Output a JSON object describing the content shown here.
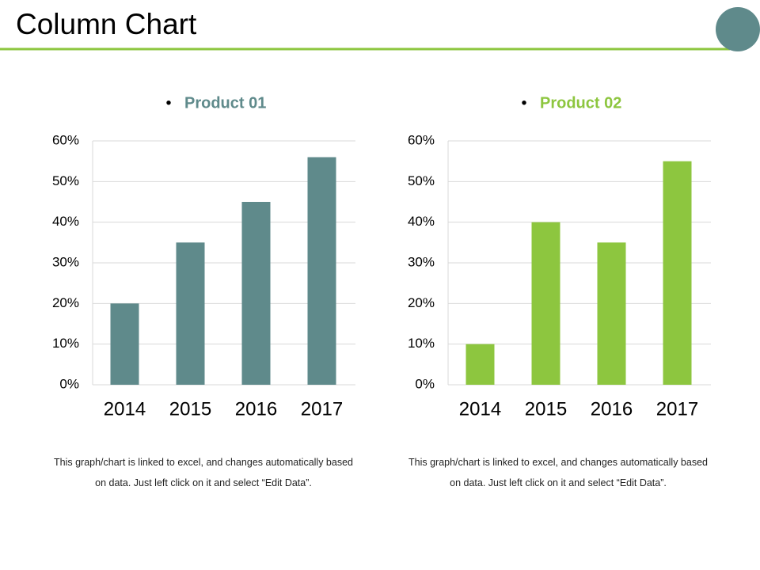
{
  "title": "Column Chart",
  "chart_data": [
    {
      "type": "bar",
      "categories": [
        "2014",
        "2015",
        "2016",
        "2017"
      ],
      "series": [
        {
          "name": "Product 01",
          "color": "#5f8a8b",
          "values": [
            20,
            35,
            45,
            56
          ]
        }
      ],
      "ylim": [
        0,
        60
      ],
      "yticks": [
        {
          "value": 0,
          "label": "0%"
        },
        {
          "value": 10,
          "label": "10%"
        },
        {
          "value": 20,
          "label": "20%"
        },
        {
          "value": 30,
          "label": "30%"
        },
        {
          "value": 40,
          "label": "40%"
        },
        {
          "value": 50,
          "label": "50%"
        },
        {
          "value": 60,
          "label": "60%"
        }
      ],
      "grid": true,
      "caption": "This graph/chart is linked to excel, and changes automatically based on data. Just left click on it and select “Edit Data”."
    },
    {
      "type": "bar",
      "categories": [
        "2014",
        "2015",
        "2016",
        "2017"
      ],
      "series": [
        {
          "name": "Product 02",
          "color": "#8dc63f",
          "values": [
            10,
            40,
            35,
            55
          ]
        }
      ],
      "ylim": [
        0,
        60
      ],
      "yticks": [
        {
          "value": 0,
          "label": "0%"
        },
        {
          "value": 10,
          "label": "10%"
        },
        {
          "value": 20,
          "label": "20%"
        },
        {
          "value": 30,
          "label": "30%"
        },
        {
          "value": 40,
          "label": "40%"
        },
        {
          "value": 50,
          "label": "50%"
        },
        {
          "value": 60,
          "label": "60%"
        }
      ],
      "grid": true,
      "caption": "This graph/chart is linked to excel, and changes automatically based on data. Just left click on it and select “Edit Data”."
    }
  ]
}
